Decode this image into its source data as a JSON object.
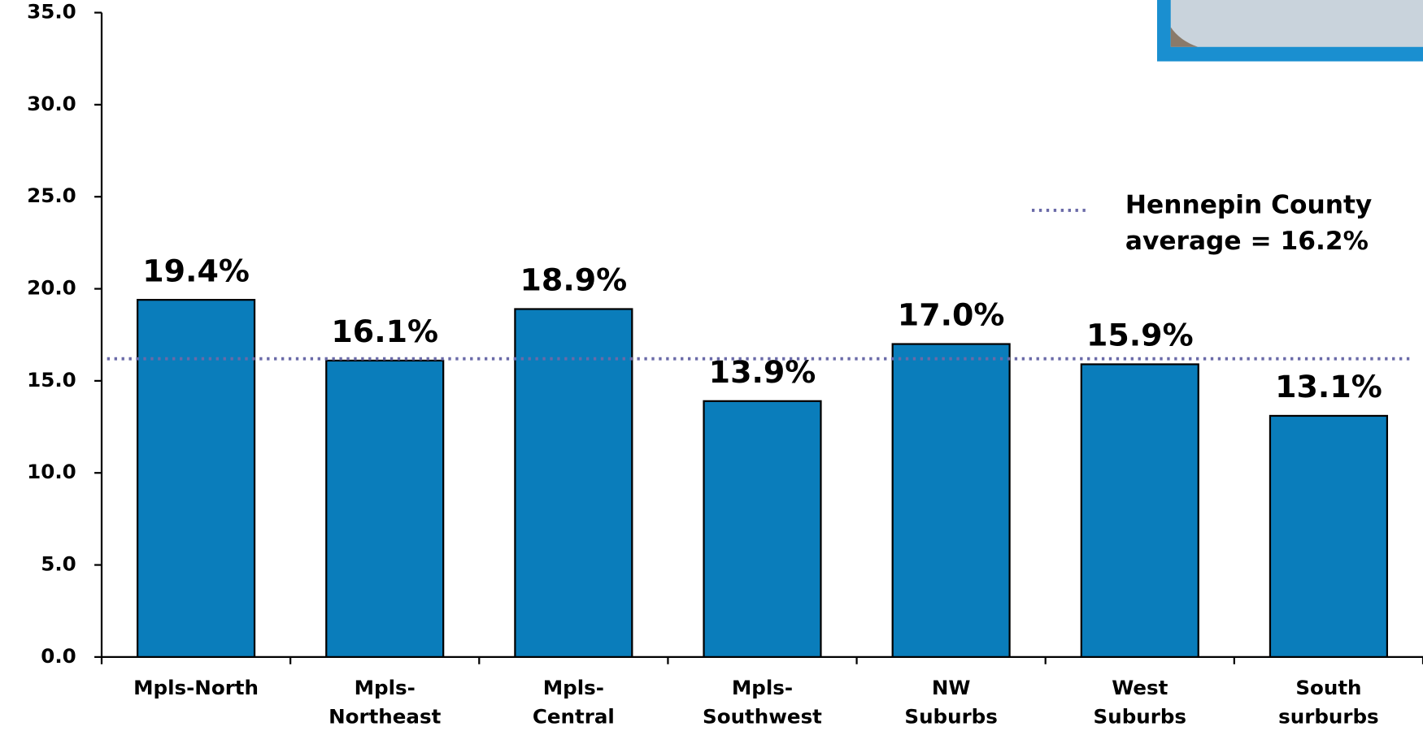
{
  "chart_data": {
    "type": "bar",
    "categories": [
      [
        "Mpls-North"
      ],
      [
        "Mpls-",
        "Northeast"
      ],
      [
        "Mpls-",
        "Central"
      ],
      [
        "Mpls-",
        "Southwest"
      ],
      [
        "NW",
        "Suburbs"
      ],
      [
        "West",
        "Suburbs"
      ],
      [
        "South",
        "surburbs"
      ]
    ],
    "values": [
      19.4,
      16.1,
      18.9,
      13.9,
      17.0,
      15.9,
      13.1
    ],
    "value_labels": [
      "19.4%",
      "16.1%",
      "18.9%",
      "13.9%",
      "17.0%",
      "15.9%",
      "13.1%"
    ],
    "color": "#0a7dbb",
    "ylim": [
      0,
      35
    ],
    "yticks": [
      {
        "value": 0,
        "label": "0.0"
      },
      {
        "value": 5,
        "label": "5.0"
      },
      {
        "value": 10,
        "label": "10.0"
      },
      {
        "value": 15,
        "label": "15.0"
      },
      {
        "value": 20,
        "label": "20.0"
      },
      {
        "value": 25,
        "label": "25.0"
      },
      {
        "value": 30,
        "label": "30.0"
      },
      {
        "value": 35,
        "label": "35.0"
      }
    ],
    "reference_line": {
      "value": 16.2,
      "color": "#6a6aa8",
      "label": [
        "Hennepin County",
        "average = 16.2%"
      ]
    }
  }
}
